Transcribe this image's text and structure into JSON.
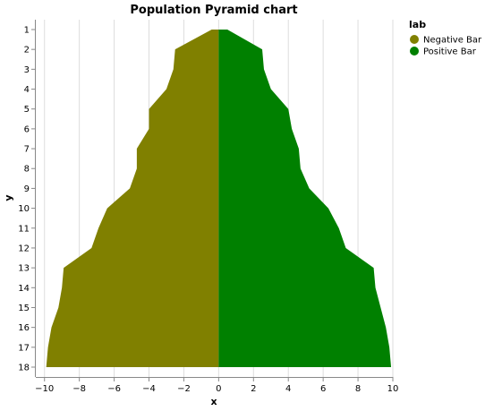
{
  "chart_data": {
    "type": "area",
    "title": "Population Pyramid chart",
    "xlabel": "x",
    "ylabel": "y",
    "xlim": [
      -10.5,
      10
    ],
    "x_ticks": [
      "−10",
      "−8",
      "−6",
      "−4",
      "−2",
      "0",
      "2",
      "4",
      "6",
      "8",
      "10"
    ],
    "x_tick_values": [
      -10,
      -8,
      -6,
      -4,
      -2,
      0,
      2,
      4,
      6,
      8,
      10
    ],
    "categories": [
      "1",
      "2",
      "3",
      "4",
      "5",
      "6",
      "7",
      "8",
      "9",
      "10",
      "11",
      "12",
      "13",
      "14",
      "15",
      "16",
      "17",
      "18"
    ],
    "grid": true,
    "legend_position": "top-right",
    "legend_title": "lab",
    "series": [
      {
        "name": "Negative Bar",
        "color": "#808000",
        "values": [
          -0.4,
          -2.5,
          -2.6,
          -3.0,
          -4.0,
          -4.0,
          -4.7,
          -4.7,
          -5.1,
          -6.4,
          -6.9,
          -7.3,
          -8.9,
          -9.0,
          -9.2,
          -9.6,
          -9.8,
          -9.9
        ]
      },
      {
        "name": "Positive Bar",
        "color": "#008000",
        "values": [
          0.5,
          2.5,
          2.6,
          3.0,
          4.0,
          4.2,
          4.6,
          4.7,
          5.2,
          6.3,
          6.9,
          7.3,
          8.9,
          9.0,
          9.3,
          9.6,
          9.8,
          9.9
        ]
      }
    ]
  }
}
